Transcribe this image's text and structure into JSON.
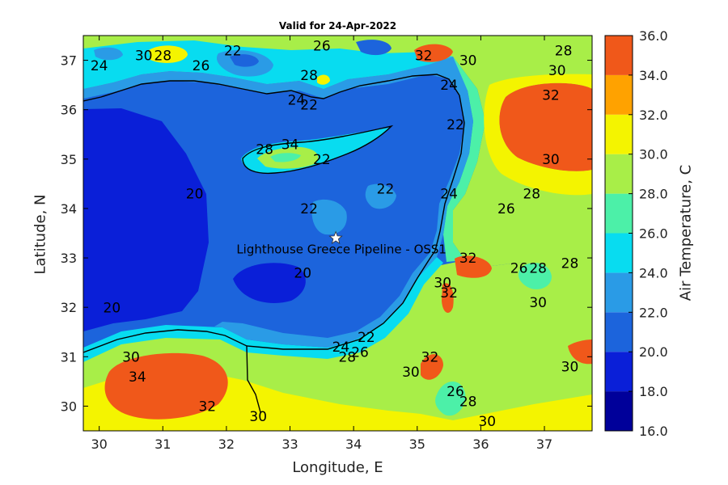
{
  "title": "Valid for 24-Apr-2022",
  "xlabel": "Longitude, E",
  "ylabel": "Latitude, N",
  "colorbar_label": "Air Temperature, C",
  "location_label": "Lighthouse Greece Pipeline - OSS1",
  "marker": {
    "name": "star-marker",
    "lon": 33.72,
    "lat": 33.4
  },
  "chart_data": {
    "type": "heatmap",
    "xlim": [
      29.75,
      37.75
    ],
    "ylim": [
      29.5,
      37.5
    ],
    "x_ticks": [
      30,
      31,
      32,
      33,
      34,
      35,
      36,
      37
    ],
    "y_ticks": [
      30,
      31,
      32,
      33,
      34,
      35,
      36,
      37
    ],
    "color_levels": [
      {
        "min": 16,
        "max": 18,
        "color": "#00009a"
      },
      {
        "min": 18,
        "max": 20,
        "color": "#0a1fd8"
      },
      {
        "min": 20,
        "max": 22,
        "color": "#1c64dc"
      },
      {
        "min": 22,
        "max": 24,
        "color": "#2a9be6"
      },
      {
        "min": 24,
        "max": 26,
        "color": "#08dcf0"
      },
      {
        "min": 26,
        "max": 28,
        "color": "#4cf0a8"
      },
      {
        "min": 28,
        "max": 30,
        "color": "#a8ee48"
      },
      {
        "min": 30,
        "max": 32,
        "color": "#f4f400"
      },
      {
        "min": 32,
        "max": 34,
        "color": "#ffa200"
      },
      {
        "min": 34,
        "max": 36,
        "color": "#f0581a"
      }
    ],
    "colorbar_ticks": [
      "16.0",
      "18.0",
      "20.0",
      "22.0",
      "24.0",
      "26.0",
      "28.0",
      "30.0",
      "32.0",
      "34.0",
      "36.0"
    ],
    "contour_labels": [
      {
        "text": "20",
        "lon": 30.2,
        "lat": 31.9
      },
      {
        "text": "20",
        "lon": 31.5,
        "lat": 34.2
      },
      {
        "text": "20",
        "lon": 33.2,
        "lat": 32.6
      },
      {
        "text": "22",
        "lon": 33.3,
        "lat": 36.0
      },
      {
        "text": "22",
        "lon": 33.5,
        "lat": 34.9
      },
      {
        "text": "22",
        "lon": 34.5,
        "lat": 34.3
      },
      {
        "text": "22",
        "lon": 33.3,
        "lat": 33.9
      },
      {
        "text": "22",
        "lon": 34.2,
        "lat": 31.3
      },
      {
        "text": "22",
        "lon": 35.6,
        "lat": 35.6
      },
      {
        "text": "22",
        "lon": 32.1,
        "lat": 37.1
      },
      {
        "text": "24",
        "lon": 30.0,
        "lat": 36.8
      },
      {
        "text": "24",
        "lon": 33.1,
        "lat": 36.1
      },
      {
        "text": "24",
        "lon": 35.5,
        "lat": 36.4
      },
      {
        "text": "24",
        "lon": 35.5,
        "lat": 34.2
      },
      {
        "text": "24",
        "lon": 33.8,
        "lat": 31.1
      },
      {
        "text": "26",
        "lon": 31.6,
        "lat": 36.8
      },
      {
        "text": "26",
        "lon": 33.5,
        "lat": 37.2
      },
      {
        "text": "26",
        "lon": 36.4,
        "lat": 33.9
      },
      {
        "text": "26",
        "lon": 35.6,
        "lat": 30.2
      },
      {
        "text": "26",
        "lon": 34.1,
        "lat": 31.0
      },
      {
        "text": "26",
        "lon": 36.6,
        "lat": 32.7
      },
      {
        "text": "28",
        "lon": 31.0,
        "lat": 37.0
      },
      {
        "text": "28",
        "lon": 33.3,
        "lat": 36.6
      },
      {
        "text": "28",
        "lon": 32.6,
        "lat": 35.1
      },
      {
        "text": "28",
        "lon": 36.8,
        "lat": 34.2
      },
      {
        "text": "28",
        "lon": 36.9,
        "lat": 32.7
      },
      {
        "text": "28",
        "lon": 35.8,
        "lat": 30.0
      },
      {
        "text": "28",
        "lon": 37.4,
        "lat": 32.8
      },
      {
        "text": "28",
        "lon": 37.3,
        "lat": 37.1
      },
      {
        "text": "28",
        "lon": 33.9,
        "lat": 30.9
      },
      {
        "text": "30",
        "lon": 30.7,
        "lat": 37.0
      },
      {
        "text": "30",
        "lon": 30.5,
        "lat": 30.9
      },
      {
        "text": "30",
        "lon": 35.8,
        "lat": 36.9
      },
      {
        "text": "30",
        "lon": 37.2,
        "lat": 36.7
      },
      {
        "text": "30",
        "lon": 37.1,
        "lat": 34.9
      },
      {
        "text": "30",
        "lon": 36.9,
        "lat": 32.0
      },
      {
        "text": "30",
        "lon": 35.4,
        "lat": 32.4
      },
      {
        "text": "30",
        "lon": 34.9,
        "lat": 30.6
      },
      {
        "text": "30",
        "lon": 37.4,
        "lat": 30.7
      },
      {
        "text": "30",
        "lon": 32.5,
        "lat": 29.7
      },
      {
        "text": "30",
        "lon": 36.1,
        "lat": 29.6
      },
      {
        "text": "32",
        "lon": 35.1,
        "lat": 37.0
      },
      {
        "text": "32",
        "lon": 37.1,
        "lat": 36.2
      },
      {
        "text": "32",
        "lon": 35.8,
        "lat": 32.9
      },
      {
        "text": "32",
        "lon": 35.5,
        "lat": 32.2
      },
      {
        "text": "32",
        "lon": 35.2,
        "lat": 30.9
      },
      {
        "text": "32",
        "lon": 31.7,
        "lat": 29.9
      },
      {
        "text": "34",
        "lon": 30.6,
        "lat": 30.5
      },
      {
        "text": "34",
        "lon": 33.0,
        "lat": 35.2
      }
    ]
  }
}
